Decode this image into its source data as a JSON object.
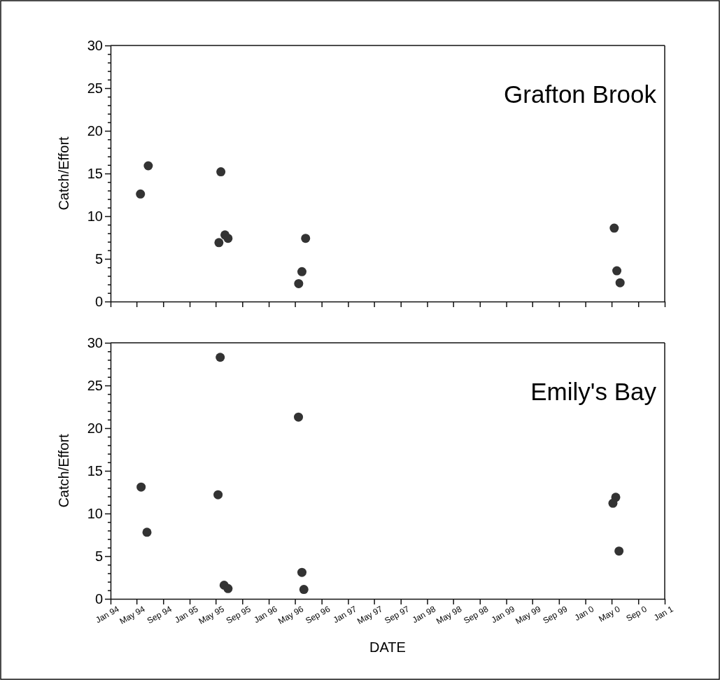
{
  "chart_data": [
    {
      "type": "scatter",
      "title": "Grafton Brook",
      "ylabel": "Catch/Effort",
      "marker": "circle",
      "grid": false,
      "tick_labels": "y",
      "xlim": [
        "1994-01",
        "2001-01"
      ],
      "xticks": [
        {
          "value": "1994-01",
          "label": null
        },
        {
          "value": "1994-05",
          "label": null
        },
        {
          "value": "1994-09",
          "label": null
        },
        {
          "value": "1995-01",
          "label": null
        },
        {
          "value": "1995-05",
          "label": null
        },
        {
          "value": "1995-09",
          "label": null
        },
        {
          "value": "1996-01",
          "label": null
        },
        {
          "value": "1996-05",
          "label": null
        },
        {
          "value": "1996-09",
          "label": null
        },
        {
          "value": "1997-01",
          "label": null
        },
        {
          "value": "1997-05",
          "label": null
        },
        {
          "value": "1997-09",
          "label": null
        },
        {
          "value": "1998-01",
          "label": null
        },
        {
          "value": "1998-05",
          "label": null
        },
        {
          "value": "1998-09",
          "label": null
        },
        {
          "value": "1999-01",
          "label": null
        },
        {
          "value": "1999-05",
          "label": null
        },
        {
          "value": "1999-09",
          "label": null
        },
        {
          "value": "2000-01",
          "label": null
        },
        {
          "value": "2000-05",
          "label": null
        },
        {
          "value": "2000-09",
          "label": null
        },
        {
          "value": "2001-01",
          "label": null
        }
      ],
      "ylim": [
        0,
        30
      ],
      "yticks": [
        0,
        {
          "value": 1,
          "label": null
        },
        {
          "value": 2,
          "label": null
        },
        {
          "value": 3,
          "label": null
        },
        {
          "value": 4,
          "label": null
        },
        5,
        {
          "value": 6,
          "label": null
        },
        {
          "value": 7,
          "label": null
        },
        {
          "value": 8,
          "label": null
        },
        {
          "value": 9,
          "label": null
        },
        10,
        {
          "value": 11,
          "label": null
        },
        {
          "value": 12,
          "label": null
        },
        {
          "value": 13,
          "label": null
        },
        {
          "value": 14,
          "label": null
        },
        15,
        {
          "value": 16,
          "label": null
        },
        {
          "value": 17,
          "label": null
        },
        {
          "value": 18,
          "label": null
        },
        {
          "value": 19,
          "label": null
        },
        20,
        {
          "value": 21,
          "label": null
        },
        {
          "value": 22,
          "label": null
        },
        {
          "value": 23,
          "label": null
        },
        {
          "value": 24,
          "label": null
        },
        25,
        {
          "value": 26,
          "label": null
        },
        {
          "value": 27,
          "label": null
        },
        {
          "value": 28,
          "label": null
        },
        {
          "value": 29,
          "label": null
        },
        30
      ],
      "series": [
        {
          "color": "#333333",
          "x": [
            "1994-05-19",
            "1994-06-24",
            "1995-05-25",
            "1995-05-16",
            "1995-06-13",
            "1995-06-27",
            "1996-05-18",
            "1996-06-02",
            "1996-06-19",
            "2000-05-13",
            "2000-05-25",
            "2000-06-09"
          ],
          "values": [
            12.6,
            15.9,
            15.2,
            6.9,
            7.8,
            7.4,
            2.1,
            3.5,
            7.4,
            8.6,
            3.6,
            2.2
          ]
        }
      ]
    },
    {
      "type": "scatter",
      "title": "Emily's Bay",
      "xlabel": "DATE",
      "ylabel": "Catch/Effort",
      "marker": "circle",
      "grid": false,
      "xlim": [
        "1994-01",
        "2001-01"
      ],
      "xticks": [
        {
          "value": "1994-01",
          "label": "Jan 94"
        },
        {
          "value": "1994-05",
          "label": "May 94"
        },
        {
          "value": "1994-09",
          "label": "Sep 94"
        },
        {
          "value": "1995-01",
          "label": "Jan 95"
        },
        {
          "value": "1995-05",
          "label": "May 95"
        },
        {
          "value": "1995-09",
          "label": "Sep 95"
        },
        {
          "value": "1996-01",
          "label": "Jan 96"
        },
        {
          "value": "1996-05",
          "label": "May 96"
        },
        {
          "value": "1996-09",
          "label": "Sep 96"
        },
        {
          "value": "1997-01",
          "label": "Jan 97"
        },
        {
          "value": "1997-05",
          "label": "May 97"
        },
        {
          "value": "1997-09",
          "label": "Sep 97"
        },
        {
          "value": "1998-01",
          "label": "Jan 98"
        },
        {
          "value": "1998-05",
          "label": "May 98"
        },
        {
          "value": "1998-09",
          "label": "Sep 98"
        },
        {
          "value": "1999-01",
          "label": "Jan 99"
        },
        {
          "value": "1999-05",
          "label": "May 99"
        },
        {
          "value": "1999-09",
          "label": "Sep 99"
        },
        {
          "value": "2000-01",
          "label": "Jan 0"
        },
        {
          "value": "2000-05",
          "label": "May 0"
        },
        {
          "value": "2000-09",
          "label": "Sep 0"
        },
        {
          "value": "2001-01",
          "label": "Jan 1"
        }
      ],
      "ylim": [
        0,
        30
      ],
      "yticks": [
        0,
        {
          "value": 1,
          "label": null
        },
        {
          "value": 2,
          "label": null
        },
        {
          "value": 3,
          "label": null
        },
        {
          "value": 4,
          "label": null
        },
        5,
        {
          "value": 6,
          "label": null
        },
        {
          "value": 7,
          "label": null
        },
        {
          "value": 8,
          "label": null
        },
        {
          "value": 9,
          "label": null
        },
        10,
        {
          "value": 11,
          "label": null
        },
        {
          "value": 12,
          "label": null
        },
        {
          "value": 13,
          "label": null
        },
        {
          "value": 14,
          "label": null
        },
        15,
        {
          "value": 16,
          "label": null
        },
        {
          "value": 17,
          "label": null
        },
        {
          "value": 18,
          "label": null
        },
        {
          "value": 19,
          "label": null
        },
        20,
        {
          "value": 21,
          "label": null
        },
        {
          "value": 22,
          "label": null
        },
        {
          "value": 23,
          "label": null
        },
        {
          "value": 24,
          "label": null
        },
        25,
        {
          "value": 26,
          "label": null
        },
        {
          "value": 27,
          "label": null
        },
        {
          "value": 28,
          "label": null
        },
        {
          "value": 29,
          "label": null
        },
        30
      ],
      "series": [
        {
          "color": "#333333",
          "x": [
            "1995-05-22",
            "1996-05-17",
            "1994-05-22",
            "1995-05-12",
            "1994-06-18",
            "1996-06-02",
            "1995-06-09",
            "1995-06-27",
            "1996-06-11",
            "2000-05-20",
            "2000-05-07",
            "2000-06-04"
          ],
          "values": [
            28.3,
            21.3,
            13.1,
            12.2,
            7.8,
            3.1,
            1.6,
            1.2,
            1.1,
            11.9,
            11.2,
            5.6
          ]
        }
      ]
    }
  ]
}
